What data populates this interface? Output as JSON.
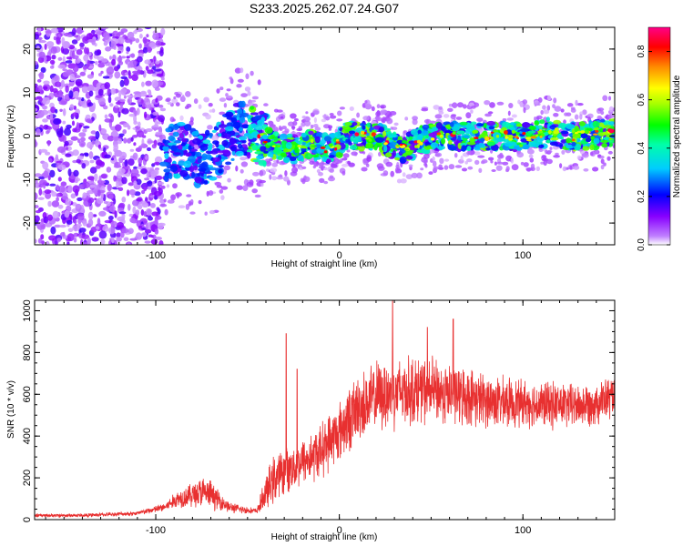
{
  "title": "S233.2025.262.07.24.G07",
  "chart_data": [
    {
      "type": "heatmap",
      "title": "S233.2025.262.07.24.G07",
      "xlabel": "Height of straight line (km)",
      "ylabel": "Frequency (Hz)",
      "xlim": [
        -166,
        150
      ],
      "ylim": [
        -25,
        25
      ],
      "xticks": [
        -100,
        0,
        100
      ],
      "xtick_labels": [
        "-100",
        "0",
        "100"
      ],
      "yticks": [
        -20,
        -10,
        0,
        10,
        20
      ],
      "ytick_labels": [
        "-20",
        "-10",
        "0",
        "10",
        "20"
      ],
      "colorbar": {
        "label": "Normalized spectral amplitude",
        "range": [
          0,
          0.9
        ],
        "ticks": [
          0.0,
          0.2,
          0.4,
          0.6,
          0.8
        ],
        "tick_labels": [
          "0.0",
          "0.2",
          "0.4",
          "0.6",
          "0.8"
        ],
        "colors": [
          "#ffffff",
          "#8800ff",
          "#0000ff",
          "#00ffff",
          "#00ff00",
          "#ffff00",
          "#ff8800",
          "#ff0000",
          "#ff0088"
        ]
      },
      "ridge": {
        "description_x_km": [
          -95,
          -85,
          -75,
          -65,
          -55,
          -45,
          -35,
          -25,
          -15,
          -5,
          5,
          15,
          25,
          35,
          45,
          55,
          65,
          75,
          85,
          95,
          105,
          115,
          125,
          135,
          148
        ],
        "center_freq_hz": [
          -4,
          -3,
          -6,
          -3,
          2,
          0,
          -2,
          -3,
          -2,
          -3,
          0,
          0,
          -1,
          -3,
          -1,
          0,
          0,
          0,
          0,
          0,
          0,
          1,
          0,
          0,
          1
        ]
      }
    },
    {
      "type": "line",
      "title": "",
      "xlabel": "Height of straight line (km)",
      "ylabel": "SNR (10 * v/v)",
      "xlim": [
        -166,
        150
      ],
      "ylim": [
        0,
        1050
      ],
      "xticks": [
        -100,
        0,
        100
      ],
      "xtick_labels": [
        "-100",
        "0",
        "100"
      ],
      "yticks": [
        0,
        200,
        400,
        600,
        800,
        1000
      ],
      "ytick_labels": [
        "0",
        "200",
        "400",
        "600",
        "800",
        "1000"
      ],
      "color": "#e83030",
      "series": [
        {
          "name": "SNR",
          "x": [
            -166,
            -140,
            -110,
            -95,
            -88,
            -80,
            -75,
            -70,
            -65,
            -60,
            -55,
            -50,
            -45,
            -40,
            -35,
            -30,
            -25,
            -20,
            -15,
            -10,
            -5,
            0,
            5,
            10,
            15,
            20,
            25,
            30,
            40,
            50,
            60,
            70,
            80,
            90,
            100,
            110,
            120,
            130,
            140,
            150
          ],
          "mean": [
            20,
            20,
            30,
            60,
            100,
            120,
            130,
            120,
            90,
            60,
            50,
            45,
            40,
            130,
            200,
            230,
            250,
            280,
            300,
            330,
            380,
            420,
            480,
            530,
            560,
            590,
            600,
            610,
            620,
            620,
            600,
            590,
            570,
            560,
            560,
            550,
            550,
            545,
            560,
            590
          ],
          "amp": [
            10,
            10,
            12,
            25,
            50,
            70,
            90,
            80,
            50,
            30,
            25,
            20,
            15,
            100,
            140,
            120,
            130,
            130,
            140,
            150,
            160,
            170,
            180,
            190,
            190,
            190,
            200,
            200,
            190,
            180,
            170,
            160,
            150,
            140,
            130,
            130,
            130,
            120,
            120,
            120
          ]
        }
      ],
      "peaks": [
        {
          "x": -29,
          "y": 890
        },
        {
          "x": -23,
          "y": 720
        },
        {
          "x": 29,
          "y": 1050
        },
        {
          "x": 48,
          "y": 920
        },
        {
          "x": 62,
          "y": 960
        }
      ]
    }
  ]
}
